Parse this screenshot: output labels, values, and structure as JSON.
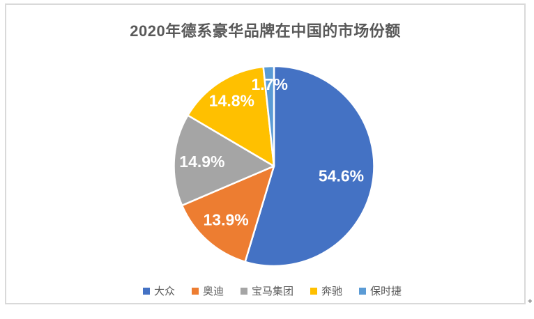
{
  "chart": {
    "title": "2020年德系豪华品牌在中国的市场份额"
  },
  "chart_data": {
    "type": "pie",
    "title": "2020年德系豪华品牌在中国的市场份额",
    "categories": [
      "大众",
      "奥迪",
      "宝马集团",
      "奔驰",
      "保时捷"
    ],
    "values": [
      54.6,
      13.9,
      14.9,
      14.8,
      1.7
    ],
    "data_labels": [
      "54.6%",
      "13.9%",
      "14.9%",
      "14.8%",
      "1.7%"
    ],
    "colors": [
      "#4472C4",
      "#ED7D31",
      "#A5A5A5",
      "#FFC000",
      "#5B9BD5"
    ],
    "label_color": "#FFFFFF",
    "title_color": "#595959",
    "legend_position": "bottom",
    "start_angle_deg": 0,
    "direction": "clockwise"
  },
  "decorations": {
    "corner_mark": "+"
  }
}
